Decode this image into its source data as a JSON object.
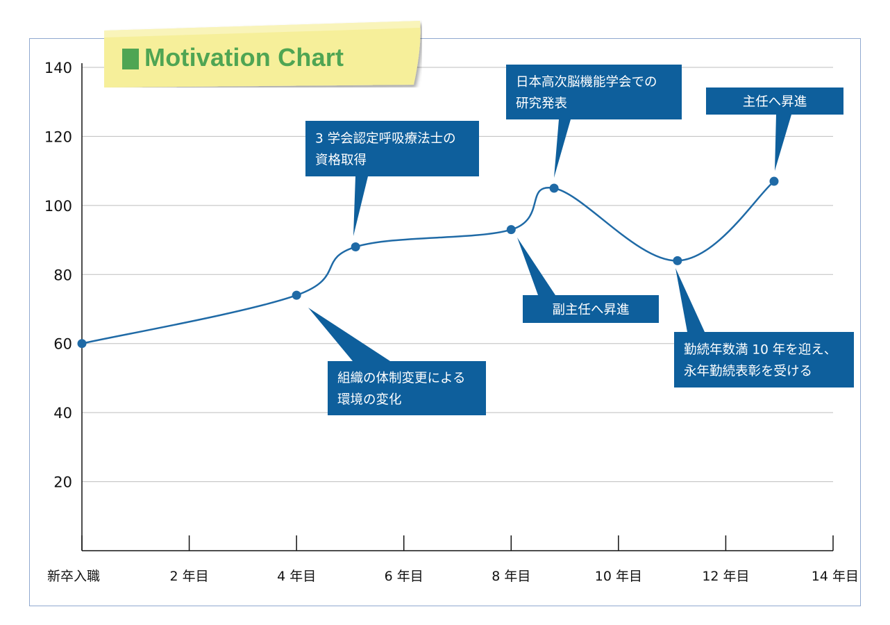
{
  "title": "Motivation Chart",
  "colors": {
    "line": "#1f6aa6",
    "callout_bg": "#0e5f9c",
    "title_green": "#4fa553",
    "tape_yellow": "#f6ef9a",
    "grid": "#bdbdbd",
    "frame": "#8fa8cf"
  },
  "chart_data": {
    "type": "line",
    "title": "Motivation Chart",
    "xlabel": "",
    "ylabel": "",
    "xlim": [
      0,
      14
    ],
    "ylim": [
      0,
      140
    ],
    "grid": true,
    "x_ticks": [
      {
        "x": 0,
        "label": "新卒入職"
      },
      {
        "x": 2,
        "label": "2 年目"
      },
      {
        "x": 4,
        "label": "4 年目"
      },
      {
        "x": 6,
        "label": "6 年目"
      },
      {
        "x": 8,
        "label": "8 年目"
      },
      {
        "x": 10,
        "label": "10 年目"
      },
      {
        "x": 12,
        "label": "12 年目"
      },
      {
        "x": 14,
        "label": "14 年目"
      }
    ],
    "y_ticks": [
      20,
      40,
      60,
      80,
      100,
      120,
      140
    ],
    "series": [
      {
        "points": [
          {
            "x": 0,
            "y": 60
          },
          {
            "x": 4,
            "y": 74
          },
          {
            "x": 5.1,
            "y": 88
          },
          {
            "x": 8,
            "y": 93
          },
          {
            "x": 8.8,
            "y": 105
          },
          {
            "x": 11.1,
            "y": 84
          },
          {
            "x": 12.9,
            "y": 107
          }
        ]
      }
    ],
    "annotations": [
      {
        "point": 1,
        "lines": [
          "組織の体制変更による",
          "環境の変化"
        ],
        "position": "below-right"
      },
      {
        "point": 2,
        "lines": [
          "3 学会認定呼吸療法士の",
          "資格取得"
        ],
        "position": "above"
      },
      {
        "point": 3,
        "lines": [
          "副主任へ昇進"
        ],
        "position": "below-right"
      },
      {
        "point": 4,
        "lines": [
          "日本高次脳機能学会での",
          "研究発表"
        ],
        "position": "above"
      },
      {
        "point": 5,
        "lines": [
          "勤続年数満 10 年を迎え、",
          "永年勤続表彰を受ける"
        ],
        "position": "below-right"
      },
      {
        "point": 6,
        "lines": [
          "主任へ昇進"
        ],
        "position": "above"
      }
    ]
  }
}
